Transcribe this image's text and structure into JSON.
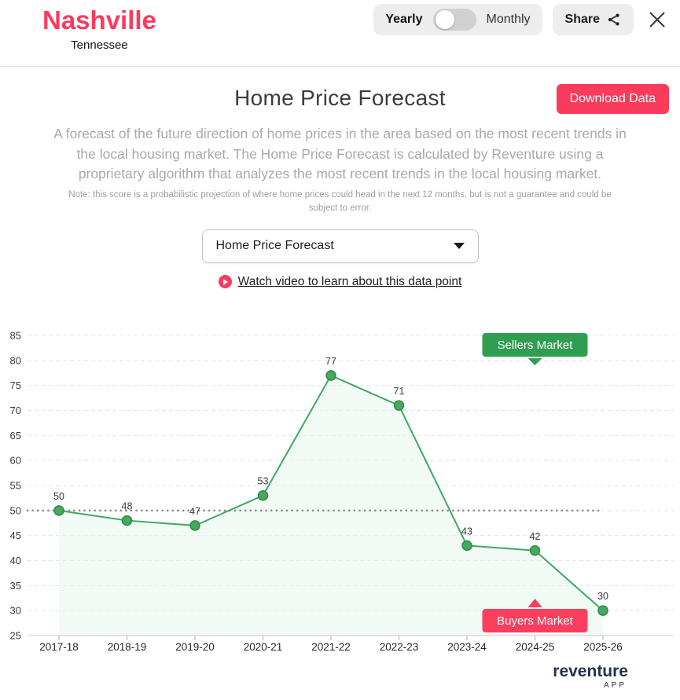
{
  "header": {
    "city": "Nashville",
    "state": "Tennessee",
    "period_toggle": {
      "left_label": "Yearly",
      "right_label": "Monthly",
      "selected": "Yearly"
    },
    "share_label": "Share"
  },
  "section": {
    "title": "Home Price Forecast",
    "download_button_label": "Download Data",
    "description": "A forecast of the future direction of home prices in the area based on the most recent trends in the local housing market. The Home Price Forecast is calculated by Reventure using a proprietary algorithm that analyzes the most recent trends in the local housing market.",
    "note": "Note: this score is a probabilistic projection of where home prices could head in the next 12 months, but is not a guarantee and could be subject to error.",
    "metric_dropdown_value": "Home Price Forecast",
    "video_link_label": "Watch video to learn about this data point"
  },
  "chart_data": {
    "type": "line",
    "title": "Home Price Forecast",
    "categories": [
      "2017-18",
      "2018-19",
      "2019-20",
      "2020-21",
      "2021-22",
      "2022-23",
      "2023-24",
      "2024-25",
      "2025-26"
    ],
    "values": [
      50,
      48,
      47,
      53,
      77,
      71,
      43,
      42,
      30
    ],
    "xlabel": "",
    "ylabel": "",
    "ylim": [
      25,
      85
    ],
    "ytick_step": 5,
    "grid": true,
    "legend": "none",
    "reference_line": 50,
    "line_color": "#3fa95f",
    "point_color": "#47a85f",
    "point_stroke": "#2e8a4b",
    "area_color": "#e8f5ec",
    "annotations": [
      {
        "label": "Sellers Market",
        "color": "#2f9e50",
        "position": "top",
        "anchor_category": "2024-25"
      },
      {
        "label": "Buyers Market",
        "color": "#fb3e5d",
        "position": "bottom",
        "anchor_category": "2024-25"
      }
    ]
  },
  "footer": {
    "brand": "reventure",
    "brand_sub": "APP"
  },
  "icons": {
    "share": "share-icon",
    "close": "close-icon",
    "caret": "caret-down-icon",
    "play": "play-icon"
  },
  "colors": {
    "accent_pink": "#fb3b5c",
    "accent_green": "#2f9e50",
    "muted_gray": "#a9a9a9"
  }
}
